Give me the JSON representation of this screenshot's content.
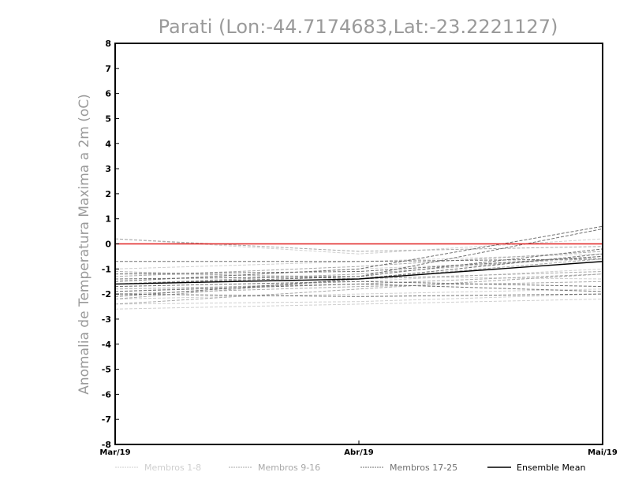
{
  "chart_data": {
    "type": "line",
    "title": "Parati (Lon:-44.7174683,Lat:-23.2221127)",
    "xlabel": "",
    "ylabel": "Anomalia de Temperatura Maxima a 2m (oC)",
    "categories": [
      "Mar/19",
      "Abr/19",
      "Mai/19"
    ],
    "ylim": [
      -8,
      8
    ],
    "yticks": [
      -8,
      -7,
      -6,
      -5,
      -4,
      -3,
      -2,
      -1,
      0,
      1,
      2,
      3,
      4,
      5,
      6,
      7,
      8
    ],
    "reference_line": {
      "value": 0,
      "color": "#e02020"
    },
    "groups": [
      {
        "legend": "Membros 1-8",
        "color": "#cfcfcf"
      },
      {
        "legend": "Membros 9-16",
        "color": "#a8a8a8"
      },
      {
        "legend": "Membros 17-25",
        "color": "#707070"
      },
      {
        "legend": "Ensemble Mean",
        "color": "#000000"
      }
    ],
    "series": [
      {
        "group": 0,
        "values": [
          0.2,
          -0.4,
          0.2
        ]
      },
      {
        "group": 0,
        "values": [
          -1.0,
          -0.7,
          -0.4
        ]
      },
      {
        "group": 0,
        "values": [
          -1.2,
          -1.3,
          -1.4
        ]
      },
      {
        "group": 0,
        "values": [
          -1.5,
          -1.0,
          -0.6
        ]
      },
      {
        "group": 0,
        "values": [
          -1.9,
          -1.5,
          -1.0
        ]
      },
      {
        "group": 0,
        "values": [
          -2.2,
          -2.0,
          -1.8
        ]
      },
      {
        "group": 0,
        "values": [
          -2.4,
          -2.3,
          -2.0
        ]
      },
      {
        "group": 0,
        "values": [
          -2.6,
          -2.4,
          -2.2
        ]
      },
      {
        "group": 1,
        "values": [
          0.2,
          -0.3,
          -0.1
        ]
      },
      {
        "group": 1,
        "values": [
          -1.1,
          -1.4,
          -1.1
        ]
      },
      {
        "group": 1,
        "values": [
          -1.3,
          -0.9,
          -0.3
        ]
      },
      {
        "group": 1,
        "values": [
          -1.6,
          -1.2,
          -0.5
        ]
      },
      {
        "group": 1,
        "values": [
          -1.8,
          -1.6,
          -1.2
        ]
      },
      {
        "group": 1,
        "values": [
          -2.0,
          -1.7,
          -1.5
        ]
      },
      {
        "group": 1,
        "values": [
          -2.2,
          -1.4,
          -0.6
        ]
      },
      {
        "group": 1,
        "values": [
          -2.4,
          -1.8,
          -1.2
        ]
      },
      {
        "group": 2,
        "values": [
          -0.7,
          -0.7,
          -0.6
        ]
      },
      {
        "group": 2,
        "values": [
          -1.2,
          -1.1,
          -0.5
        ]
      },
      {
        "group": 2,
        "values": [
          -1.4,
          -1.3,
          -0.2
        ]
      },
      {
        "group": 2,
        "values": [
          -1.5,
          -1.0,
          0.7
        ]
      },
      {
        "group": 2,
        "values": [
          -1.6,
          -1.3,
          0.6
        ]
      },
      {
        "group": 2,
        "values": [
          -1.7,
          -1.5,
          -1.7
        ]
      },
      {
        "group": 2,
        "values": [
          -1.9,
          -1.6,
          -1.9
        ]
      },
      {
        "group": 2,
        "values": [
          -2.0,
          -2.1,
          -2.0
        ]
      },
      {
        "group": 2,
        "values": [
          -2.1,
          -1.4,
          -0.4
        ]
      },
      {
        "group": 3,
        "values": [
          -1.6,
          -1.4,
          -0.7
        ]
      }
    ]
  }
}
